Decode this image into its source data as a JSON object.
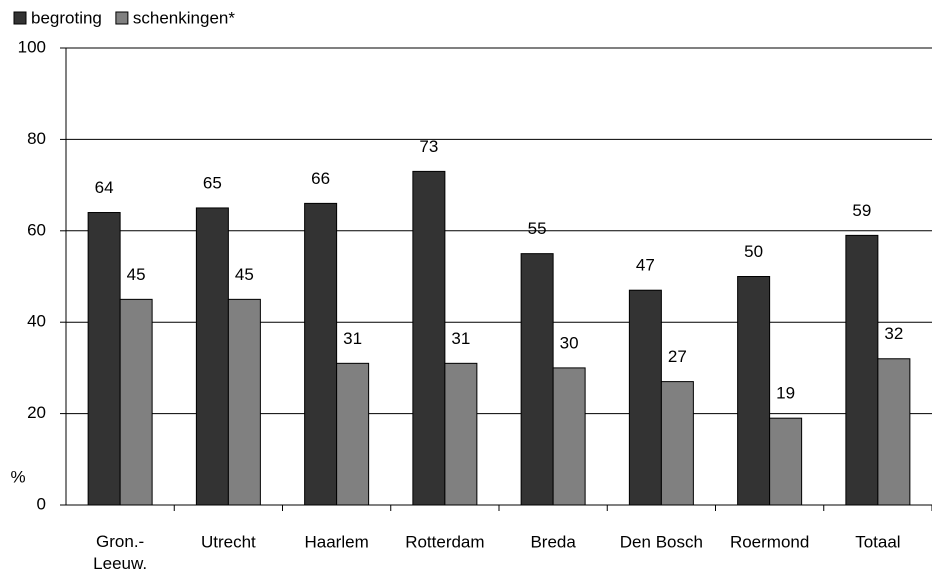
{
  "chart_data": {
    "type": "bar",
    "y_label": "%",
    "categories": [
      "Gron.-\nLeeuw.",
      "Utrecht",
      "Haarlem",
      "Rotterdam",
      "Breda",
      "Den Bosch",
      "Roermond",
      "Totaal"
    ],
    "series": [
      {
        "name": "begroting",
        "color": "#333333",
        "values": [
          64,
          65,
          66,
          73,
          55,
          47,
          50,
          59
        ]
      },
      {
        "name": "schenkingen*",
        "color": "#808080",
        "values": [
          45,
          45,
          31,
          31,
          30,
          27,
          19,
          32
        ]
      }
    ],
    "ylim": [
      0,
      100
    ],
    "yticks": [
      0,
      20,
      40,
      60,
      80,
      100
    ],
    "grid": true,
    "legend": "top"
  }
}
